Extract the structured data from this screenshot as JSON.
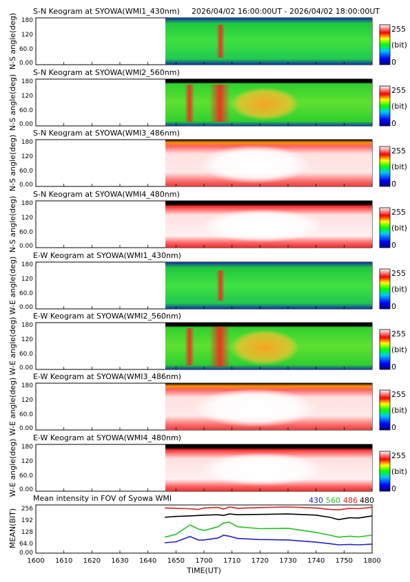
{
  "header": {
    "time_range": "2026/04/02 16:00:00UT - 2026/04/02 18:00:00UT"
  },
  "colorbar": {
    "max_label": "255",
    "unit_label": "(bit)",
    "min_label": "0"
  },
  "keograms": [
    {
      "title": "S-N Keogram at SYOWA(WMI1_430nm)",
      "ylabel": "N-S angle(deg)",
      "y_ticks": [
        "180",
        "120",
        "60.0",
        "0.00"
      ],
      "colormap": "430"
    },
    {
      "title": "S-N Keogram at SYOWA(WMI2_560nm)",
      "ylabel": "N-S angle(deg)",
      "y_ticks": [
        "180",
        "120",
        "60.0",
        "0.00"
      ],
      "colormap": "560"
    },
    {
      "title": "S-N Keogram at SYOWA(WMI3_486nm)",
      "ylabel": "N-S angle(deg)",
      "y_ticks": [
        "180",
        "120",
        "60.0",
        "0.00"
      ],
      "colormap": "486"
    },
    {
      "title": "S-N Keogram at SYOWA(WMI4_480nm)",
      "ylabel": "N-S angle(deg)",
      "y_ticks": [
        "180",
        "120",
        "60.0",
        "0.00"
      ],
      "colormap": "480"
    },
    {
      "title": "E-W Keogram at SYOWA(WMI1_430nm)",
      "ylabel": "W-E angle(deg)",
      "y_ticks": [
        "180",
        "120",
        "60.0",
        "0.00"
      ],
      "colormap": "430"
    },
    {
      "title": "E-W Keogram at SYOWA(WMI2_560nm)",
      "ylabel": "W-E angle(deg)",
      "y_ticks": [
        "180",
        "120",
        "60.0",
        "0.00"
      ],
      "colormap": "560"
    },
    {
      "title": "E-W Keogram at SYOWA(WMI3_486nm)",
      "ylabel": "W-E angle(deg)",
      "y_ticks": [
        "180",
        "120",
        "60.0",
        "0.00"
      ],
      "colormap": "486"
    },
    {
      "title": "E-W Keogram at SYOWA(WMI4_480nm)",
      "ylabel": "W-E angle(deg)",
      "y_ticks": [
        "180",
        "120",
        "60.0",
        "0.00"
      ],
      "colormap": "480"
    }
  ],
  "mean_panel": {
    "title": "Mean intensity in FOV of Syowa WMI",
    "ylabel": "MEAN(BIT)",
    "y_ticks": [
      "256",
      "192",
      "128",
      "64.0",
      "0.00"
    ],
    "legend": [
      {
        "label": "430",
        "color": "#2020c0"
      },
      {
        "label": "560",
        "color": "#20c020"
      },
      {
        "label": "486",
        "color": "#d02020"
      },
      {
        "label": "480",
        "color": "#000000"
      }
    ]
  },
  "x_axis": {
    "label": "TIME(UT)",
    "ticks": [
      "1600",
      "1610",
      "1620",
      "1630",
      "1640",
      "1650",
      "1700",
      "1710",
      "1720",
      "1730",
      "1740",
      "1750",
      "1800"
    ]
  },
  "chart_data": {
    "type": "line",
    "title": "Mean intensity in FOV of Syowa WMI",
    "xlabel": "TIME(UT)",
    "ylabel": "MEAN(BIT)",
    "ylim": [
      0,
      256
    ],
    "x": [
      1646,
      1650,
      1655,
      1658,
      1700,
      1705,
      1707,
      1709,
      1712,
      1720,
      1730,
      1740,
      1745,
      1748,
      1752,
      1755,
      1800
    ],
    "series": [
      {
        "name": "486",
        "values": [
          240,
          238,
          236,
          232,
          240,
          243,
          234,
          245,
          238,
          242,
          245,
          240,
          232,
          230,
          238,
          236,
          244
        ]
      },
      {
        "name": "480",
        "values": [
          190,
          195,
          198,
          200,
          202,
          204,
          200,
          208,
          204,
          206,
          208,
          202,
          190,
          178,
          188,
          186,
          198
        ]
      },
      {
        "name": "560",
        "values": [
          85,
          100,
          150,
          128,
          120,
          140,
          160,
          165,
          140,
          130,
          132,
          110,
          95,
          85,
          90,
          86,
          95
        ]
      },
      {
        "name": "430",
        "values": [
          55,
          60,
          88,
          70,
          70,
          80,
          95,
          90,
          78,
          72,
          70,
          58,
          50,
          44,
          46,
          44,
          48
        ]
      }
    ]
  }
}
